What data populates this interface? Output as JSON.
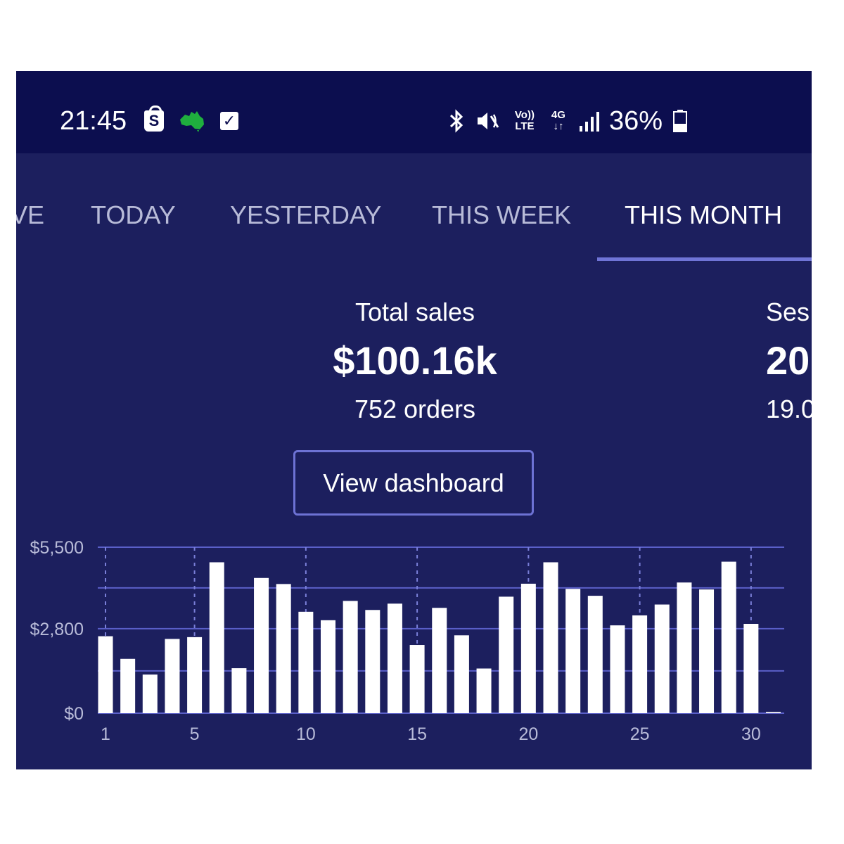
{
  "status_bar": {
    "time": "21:45",
    "shopify_glyph": "S",
    "left_icons": [
      "shopify-bag-icon",
      "australia-map-icon",
      "checkbox-icon"
    ],
    "right_icons": [
      "bluetooth-icon",
      "vibrate-icon",
      "volte-icon",
      "4g-icon",
      "signal-icon",
      "battery-icon"
    ],
    "volte_label": "Vo)) LTE",
    "network_label": "4G",
    "battery_percent": "36%",
    "battery_level": 0.36
  },
  "tabs": [
    {
      "label": "VE",
      "active": false
    },
    {
      "label": "TODAY",
      "active": false
    },
    {
      "label": "YESTERDAY",
      "active": false
    },
    {
      "label": "THIS WEEK",
      "active": false
    },
    {
      "label": "THIS MONTH",
      "active": true
    }
  ],
  "summary": {
    "label": "Total sales",
    "value": "$100.16k",
    "sub": "752 orders"
  },
  "summary_next": {
    "label": "Ses",
    "value": "20",
    "sub": "19.0"
  },
  "dashboard_button": "View dashboard",
  "colors": {
    "background": "#1c1f5e",
    "status_bar": "#0c0e4f",
    "accent": "#6f74d6",
    "bar": "#ffffff"
  },
  "chart_data": {
    "type": "bar",
    "x": [
      1,
      2,
      3,
      4,
      5,
      6,
      7,
      8,
      9,
      10,
      11,
      12,
      13,
      14,
      15,
      16,
      17,
      18,
      19,
      20,
      21,
      22,
      23,
      24,
      25,
      26,
      27,
      28,
      29,
      30,
      31
    ],
    "values": [
      2550,
      1800,
      1280,
      2460,
      2520,
      5000,
      1490,
      4480,
      4280,
      3360,
      3080,
      3720,
      3420,
      3630,
      2260,
      3490,
      2580,
      1480,
      3860,
      4290,
      5000,
      4120,
      3890,
      2910,
      3240,
      3600,
      4330,
      4100,
      5020,
      2960,
      40
    ],
    "x_tick_labels": [
      "1",
      "5",
      "10",
      "15",
      "20",
      "25",
      "30"
    ],
    "x_tick_days": [
      1,
      5,
      10,
      15,
      20,
      25,
      30
    ],
    "y_tick_labels": [
      "$5,500",
      "$2,800",
      "$0"
    ],
    "y_tick_values": [
      5500,
      2800,
      0
    ],
    "ylim": [
      0,
      5500
    ],
    "grid": true
  }
}
